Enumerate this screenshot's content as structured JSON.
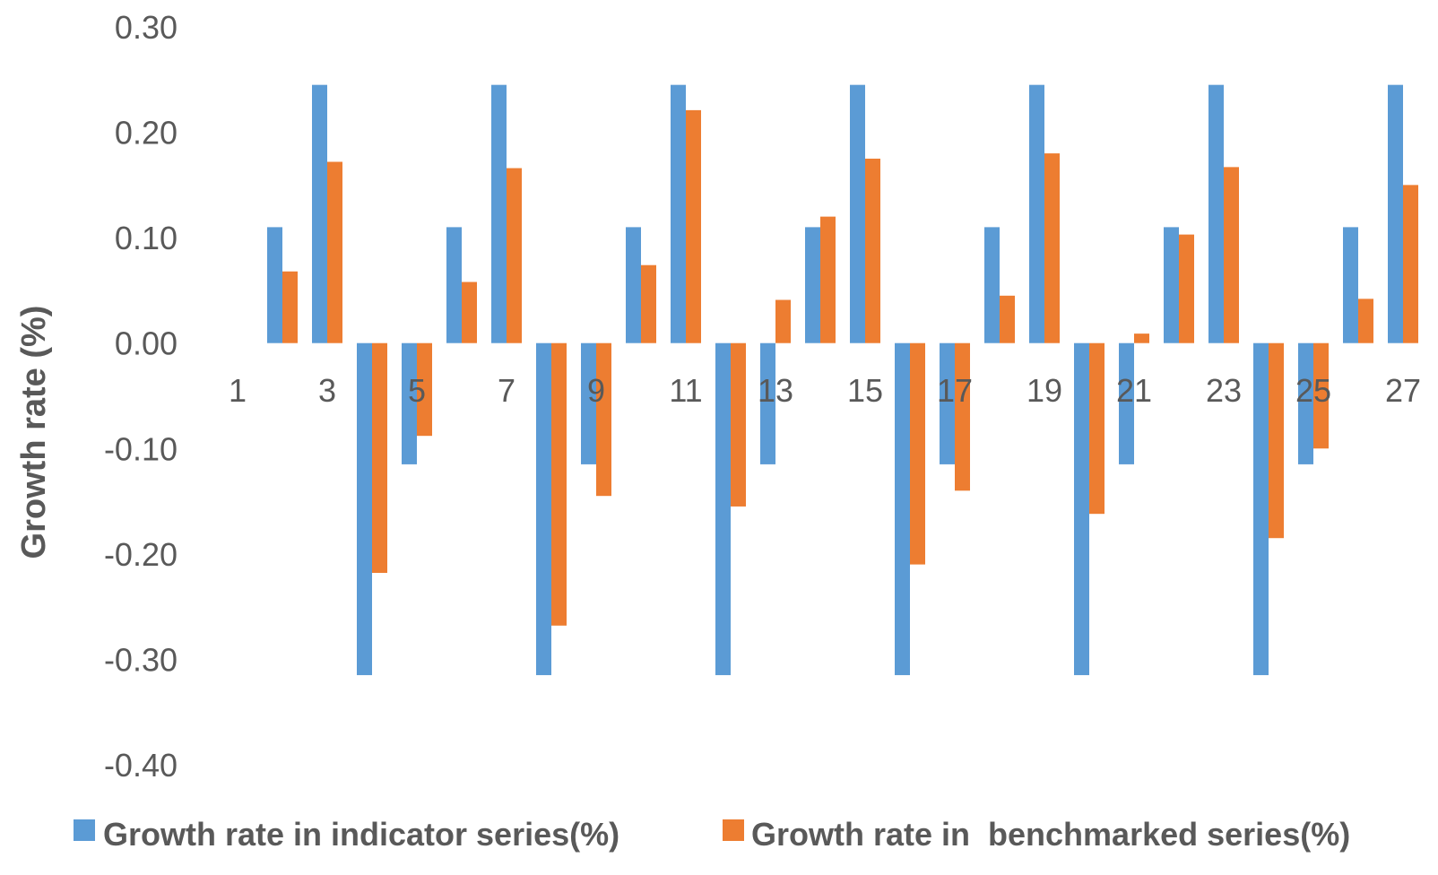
{
  "chart_data": {
    "type": "bar",
    "title": "",
    "xlabel": "",
    "ylabel": "Growth rate (%)",
    "ylim": [
      -0.4,
      0.3
    ],
    "yticks": [
      "0.30",
      "0.20",
      "0.10",
      "0.00",
      "-0.10",
      "-0.20",
      "-0.30",
      "-0.40"
    ],
    "grid": false,
    "legend_position": "bottom",
    "categories": [
      1,
      2,
      3,
      4,
      5,
      6,
      7,
      8,
      9,
      10,
      11,
      12,
      13,
      14,
      15,
      16,
      17,
      18,
      19,
      20,
      21,
      22,
      23,
      24,
      25,
      26,
      27,
      28
    ],
    "xtick_labels": [
      "1",
      "3",
      "5",
      "7",
      "9",
      "11",
      "13",
      "15",
      "17",
      "19",
      "21",
      "23",
      "25",
      "27"
    ],
    "series": [
      {
        "name": "Growth rate in indicator series(%)",
        "color": "#5B9BD5",
        "values": [
          0,
          0.11,
          0.245,
          -0.315,
          -0.115,
          0.11,
          0.245,
          -0.315,
          -0.115,
          0.11,
          0.245,
          -0.315,
          -0.115,
          0.11,
          0.245,
          -0.315,
          -0.115,
          0.11,
          0.245,
          -0.315,
          -0.115,
          0.11,
          0.245,
          -0.315,
          -0.115,
          0.11,
          0.245,
          0
        ]
      },
      {
        "name": "Growth rate in  benchmarked series(%)",
        "color": "#ED7D31",
        "values": [
          0,
          0.068,
          0.172,
          -0.218,
          -0.088,
          0.058,
          0.166,
          -0.268,
          -0.145,
          0.074,
          0.221,
          -0.155,
          0.041,
          0.12,
          0.175,
          -0.21,
          -0.14,
          0.045,
          0.18,
          -0.162,
          0.009,
          0.103,
          0.167,
          -0.185,
          -0.1,
          0.042,
          0.15,
          0
        ]
      }
    ]
  }
}
